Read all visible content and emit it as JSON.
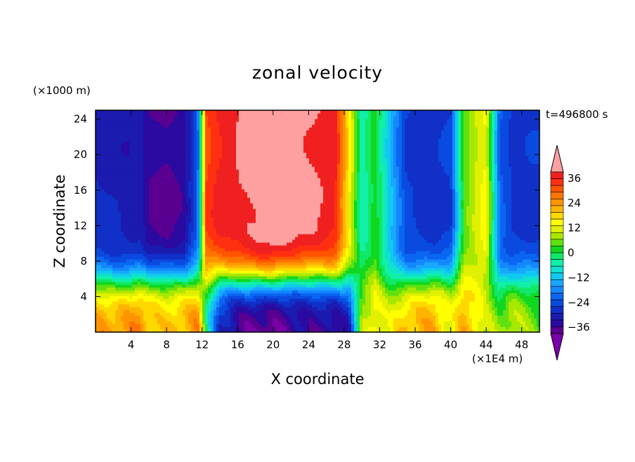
{
  "chart_data": {
    "type": "heatmap",
    "title": "zonal velocity",
    "xlabel": "X coordinate",
    "ylabel": "Z coordinate",
    "x_unit": "(×1E4 m)",
    "y_unit": "(×1000 m)",
    "time_label": "t=496800 s",
    "x_ticks": [
      4,
      8,
      12,
      16,
      20,
      24,
      28,
      32,
      36,
      40,
      44,
      48
    ],
    "y_ticks": [
      4,
      8,
      12,
      16,
      20,
      24
    ],
    "xlim": [
      0,
      50
    ],
    "ylim": [
      0,
      25
    ],
    "colorbar": {
      "tick_labels": [
        "36",
        "24",
        "12",
        "0",
        "−12",
        "−24",
        "−36"
      ],
      "tick_values": [
        36,
        24,
        12,
        0,
        -12,
        -24,
        -36
      ],
      "levels": [
        -42,
        -39,
        -36,
        -33,
        -30,
        -27,
        -24,
        -21,
        -18,
        -15,
        -12,
        -9,
        -6,
        -3,
        0,
        3,
        6,
        9,
        12,
        15,
        18,
        21,
        24,
        27,
        30,
        33,
        36,
        39,
        42
      ],
      "colors": [
        "#7a00a8",
        "#5a0090",
        "#2a0aa0",
        "#1b1bb0",
        "#1030c8",
        "#0a4ae0",
        "#0a66f0",
        "#1488ff",
        "#18a8ff",
        "#10c8f0",
        "#10e0d0",
        "#10f0a8",
        "#10e868",
        "#10d820",
        "#60e010",
        "#a8e800",
        "#e0f000",
        "#ffff00",
        "#ffd800",
        "#ffb400",
        "#ff9400",
        "#ff7400",
        "#ff5400",
        "#ff3010",
        "#f02020",
        "#ffa0a0"
      ]
    },
    "field_description_anchors": {
      "x": [
        0,
        2,
        4,
        5,
        6,
        8,
        10,
        11.5,
        12.5,
        14,
        16,
        20,
        24,
        27,
        28.5,
        30,
        31.5,
        33,
        35,
        38,
        40,
        41.5,
        43,
        44,
        45.5,
        47,
        50
      ],
      "upper_values": [
        -27,
        -28,
        -29,
        -28,
        -33,
        -34,
        -32,
        -20,
        30,
        34,
        36,
        40,
        37,
        34,
        15,
        -6,
        2,
        -10,
        -24,
        -26,
        -24,
        4,
        10,
        13,
        -20,
        -25,
        -25
      ],
      "lower_values": [
        22,
        20,
        22,
        24,
        20,
        19,
        21,
        23,
        -5,
        -28,
        -34,
        -36,
        -34,
        -33,
        -28,
        8,
        14,
        10,
        18,
        22,
        14,
        20,
        14,
        8,
        4,
        10,
        6
      ]
    }
  }
}
